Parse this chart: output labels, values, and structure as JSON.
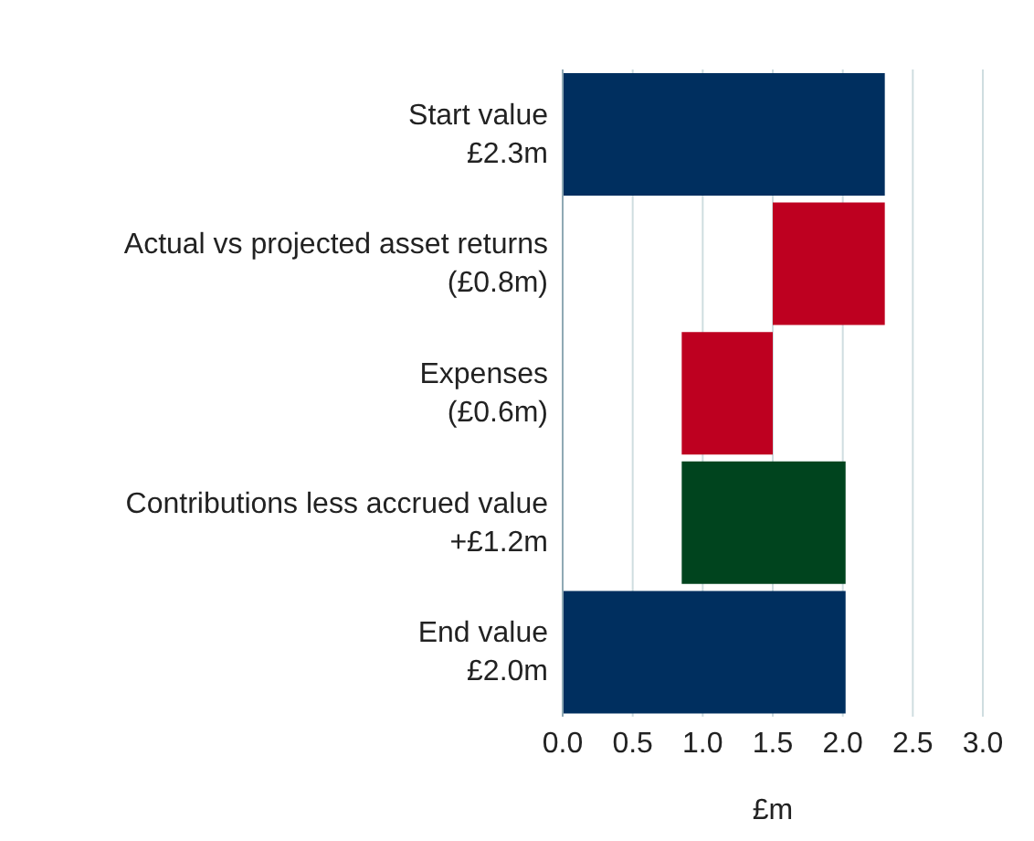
{
  "chart_data": {
    "type": "bar",
    "orientation": "horizontal",
    "xlabel": "£m",
    "categories": [
      "Start value\n£2.3m",
      "Actual vs projected asset returns\n(£0.8m)",
      "Expenses\n(£0.6m)",
      "Contributions less accrued value\n+£1.2m",
      "End value\n£2.0m"
    ],
    "values": [
      2.3,
      0.8,
      0.65,
      1.17,
      2.02
    ],
    "base": [
      0,
      1.5,
      0.85,
      0.85,
      0
    ],
    "colors": [
      "#002f5f",
      "#be0020",
      "#be0020",
      "#00441e",
      "#002f5f"
    ],
    "xlim": [
      0,
      3.0
    ],
    "xticks": [
      {
        "value": 0,
        "label": "0.0"
      },
      {
        "value": 0.5,
        "label": "0.5"
      },
      {
        "value": 1,
        "label": "1.0"
      },
      {
        "value": 1.5,
        "label": "1.5"
      },
      {
        "value": 2,
        "label": "2.0"
      },
      {
        "value": 2.5,
        "label": "2.5"
      },
      {
        "value": 3,
        "label": "3.0"
      }
    ],
    "grid": "x"
  }
}
